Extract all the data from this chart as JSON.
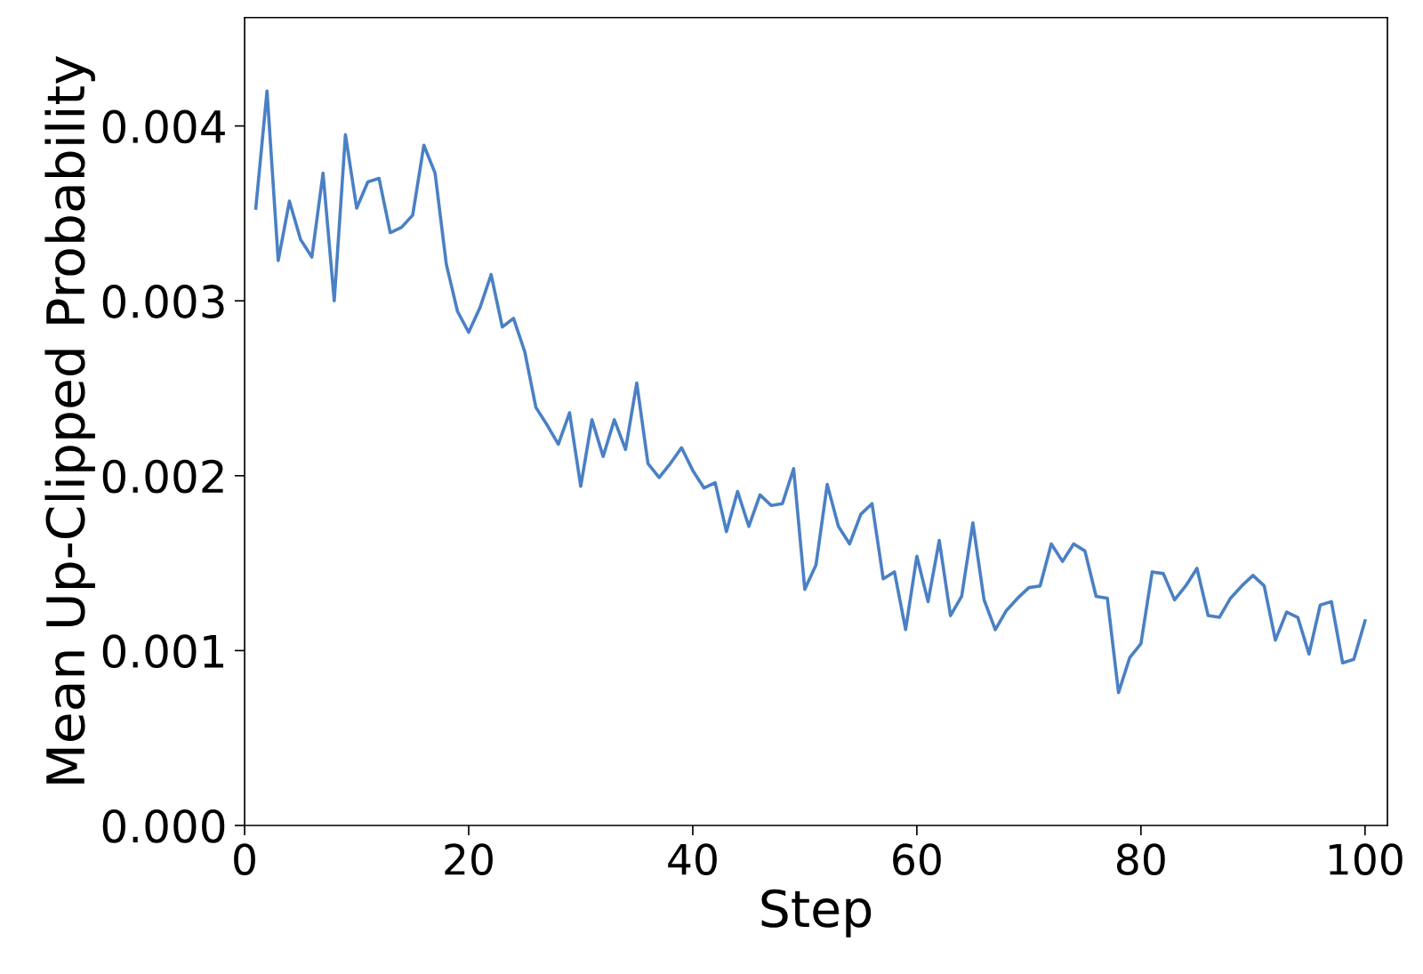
{
  "chart_data": {
    "type": "line",
    "xlabel": "Step",
    "ylabel": "Mean Up-Clipped Probability",
    "x": [
      1,
      2,
      3,
      4,
      5,
      6,
      7,
      8,
      9,
      10,
      11,
      12,
      13,
      14,
      15,
      16,
      17,
      18,
      19,
      20,
      21,
      22,
      23,
      24,
      25,
      26,
      27,
      28,
      29,
      30,
      31,
      32,
      33,
      34,
      35,
      36,
      37,
      38,
      39,
      40,
      41,
      42,
      43,
      44,
      45,
      46,
      47,
      48,
      49,
      50,
      51,
      52,
      53,
      54,
      55,
      56,
      57,
      58,
      59,
      60,
      61,
      62,
      63,
      64,
      65,
      66,
      67,
      68,
      69,
      70,
      71,
      72,
      73,
      74,
      75,
      76,
      77,
      78,
      79,
      80,
      81,
      82,
      83,
      84,
      85,
      86,
      87,
      88,
      89,
      90,
      91,
      92,
      93,
      94,
      95,
      96,
      97,
      98,
      99,
      100
    ],
    "series": [
      {
        "color": "#4a80c4",
        "values": [
          0.00353,
          0.0042,
          0.00323,
          0.00357,
          0.00335,
          0.00325,
          0.00373,
          0.003,
          0.00395,
          0.00353,
          0.00368,
          0.0037,
          0.00339,
          0.00342,
          0.00349,
          0.00389,
          0.00373,
          0.00321,
          0.00294,
          0.00282,
          0.00296,
          0.00315,
          0.00285,
          0.0029,
          0.00271,
          0.00239,
          0.00229,
          0.00218,
          0.00236,
          0.00194,
          0.00232,
          0.00211,
          0.00232,
          0.00215,
          0.00253,
          0.00207,
          0.00199,
          0.00207,
          0.00216,
          0.00203,
          0.00193,
          0.00196,
          0.00168,
          0.00191,
          0.00171,
          0.00189,
          0.00183,
          0.00184,
          0.00204,
          0.00135,
          0.00149,
          0.00195,
          0.00171,
          0.00161,
          0.00178,
          0.00184,
          0.00141,
          0.00145,
          0.00112,
          0.00154,
          0.00128,
          0.00163,
          0.0012,
          0.00131,
          0.00173,
          0.00129,
          0.00112,
          0.00123,
          0.0013,
          0.00136,
          0.00137,
          0.00161,
          0.00151,
          0.00161,
          0.00157,
          0.00131,
          0.0013,
          0.00076,
          0.00096,
          0.00104,
          0.00145,
          0.00144,
          0.00129,
          0.00137,
          0.00147,
          0.0012,
          0.00119,
          0.0013,
          0.00137,
          0.00143,
          0.00137,
          0.00106,
          0.00122,
          0.00119,
          0.00098,
          0.00126,
          0.00128,
          0.00093,
          0.00095,
          0.00117
        ]
      }
    ],
    "xlim": [
      0,
      102
    ],
    "xticks": [
      0,
      20,
      40,
      60,
      80,
      100
    ],
    "ylim": [
      0,
      0.00462
    ],
    "yticks": [
      {
        "value": 0,
        "label": "0.000"
      },
      0.001,
      0.002,
      0.003,
      0.004
    ],
    "grid": false,
    "marker": "none",
    "line_style": "solid"
  }
}
